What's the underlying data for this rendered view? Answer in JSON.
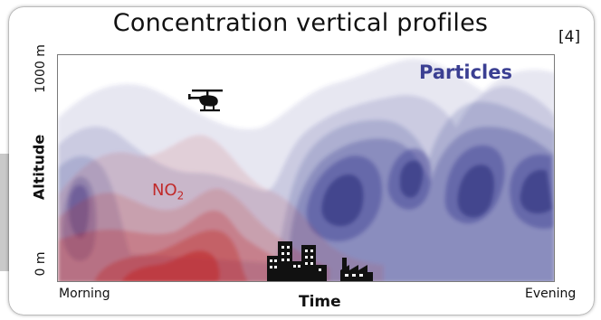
{
  "title": "Concentration vertical profiles",
  "reference": "[4]",
  "y_axis": {
    "label": "Altitude",
    "top_tick": "1000 m",
    "bottom_tick": "0 m"
  },
  "x_axis": {
    "label": "Time",
    "left_tick": "Morning",
    "right_tick": "Evening"
  },
  "layers": {
    "particles": {
      "label": "Particles",
      "color": "#3b3f92"
    },
    "no2": {
      "label": "NO",
      "subscript": "2",
      "color": "#c12a2a"
    }
  },
  "icons": [
    "helicopter-icon",
    "city-buildings-icon",
    "factory-icon"
  ]
}
